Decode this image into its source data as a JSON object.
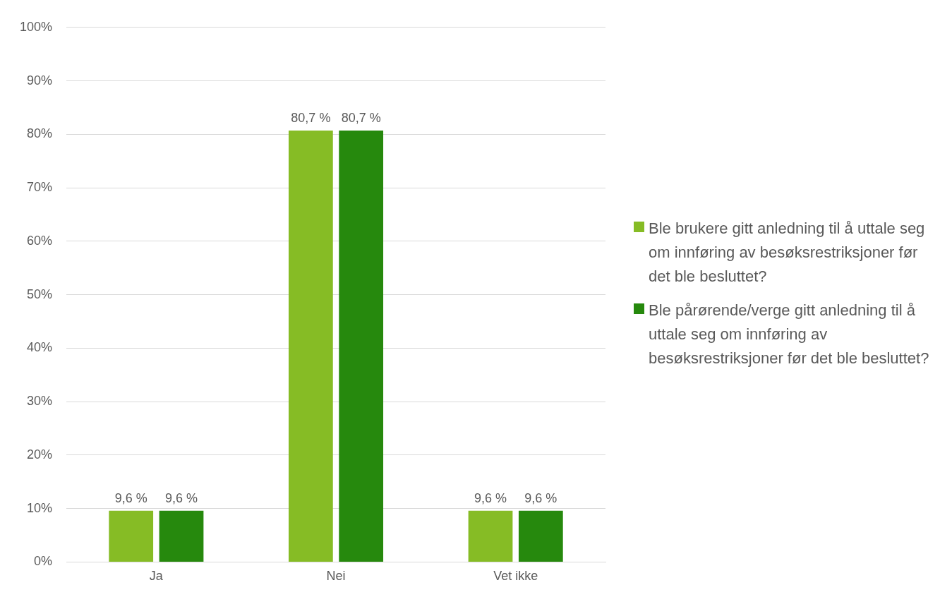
{
  "chart_data": {
    "type": "bar",
    "categories": [
      "Ja",
      "Nei",
      "Vet ikke"
    ],
    "series": [
      {
        "name": "Ble brukere gitt anledning til å uttale seg om innføring av besøksrestriksjoner før det ble besluttet?",
        "color": "#86bc25",
        "values": [
          9.6,
          80.7,
          9.6
        ],
        "value_labels": [
          "9,6 %",
          "80,7 %",
          "9,6 %"
        ]
      },
      {
        "name": "Ble pårørende/verge gitt anledning til å uttale seg om innføring av besøksrestriksjoner før det ble besluttet?",
        "color": "#26890d",
        "values": [
          9.6,
          80.7,
          9.6
        ],
        "value_labels": [
          "9,6 %",
          "80,7 %",
          "9,6 %"
        ]
      }
    ],
    "ylim": [
      0,
      100
    ],
    "yticks": [
      {
        "value": 0,
        "label": "0%"
      },
      {
        "value": 10,
        "label": "10%"
      },
      {
        "value": 20,
        "label": "20%"
      },
      {
        "value": 30,
        "label": "30%"
      },
      {
        "value": 40,
        "label": "40%"
      },
      {
        "value": 50,
        "label": "50%"
      },
      {
        "value": 60,
        "label": "60%"
      },
      {
        "value": 70,
        "label": "70%"
      },
      {
        "value": 80,
        "label": "80%"
      },
      {
        "value": 90,
        "label": "90%"
      },
      {
        "value": 100,
        "label": "100%"
      }
    ],
    "grid": "y",
    "legend": "right"
  }
}
